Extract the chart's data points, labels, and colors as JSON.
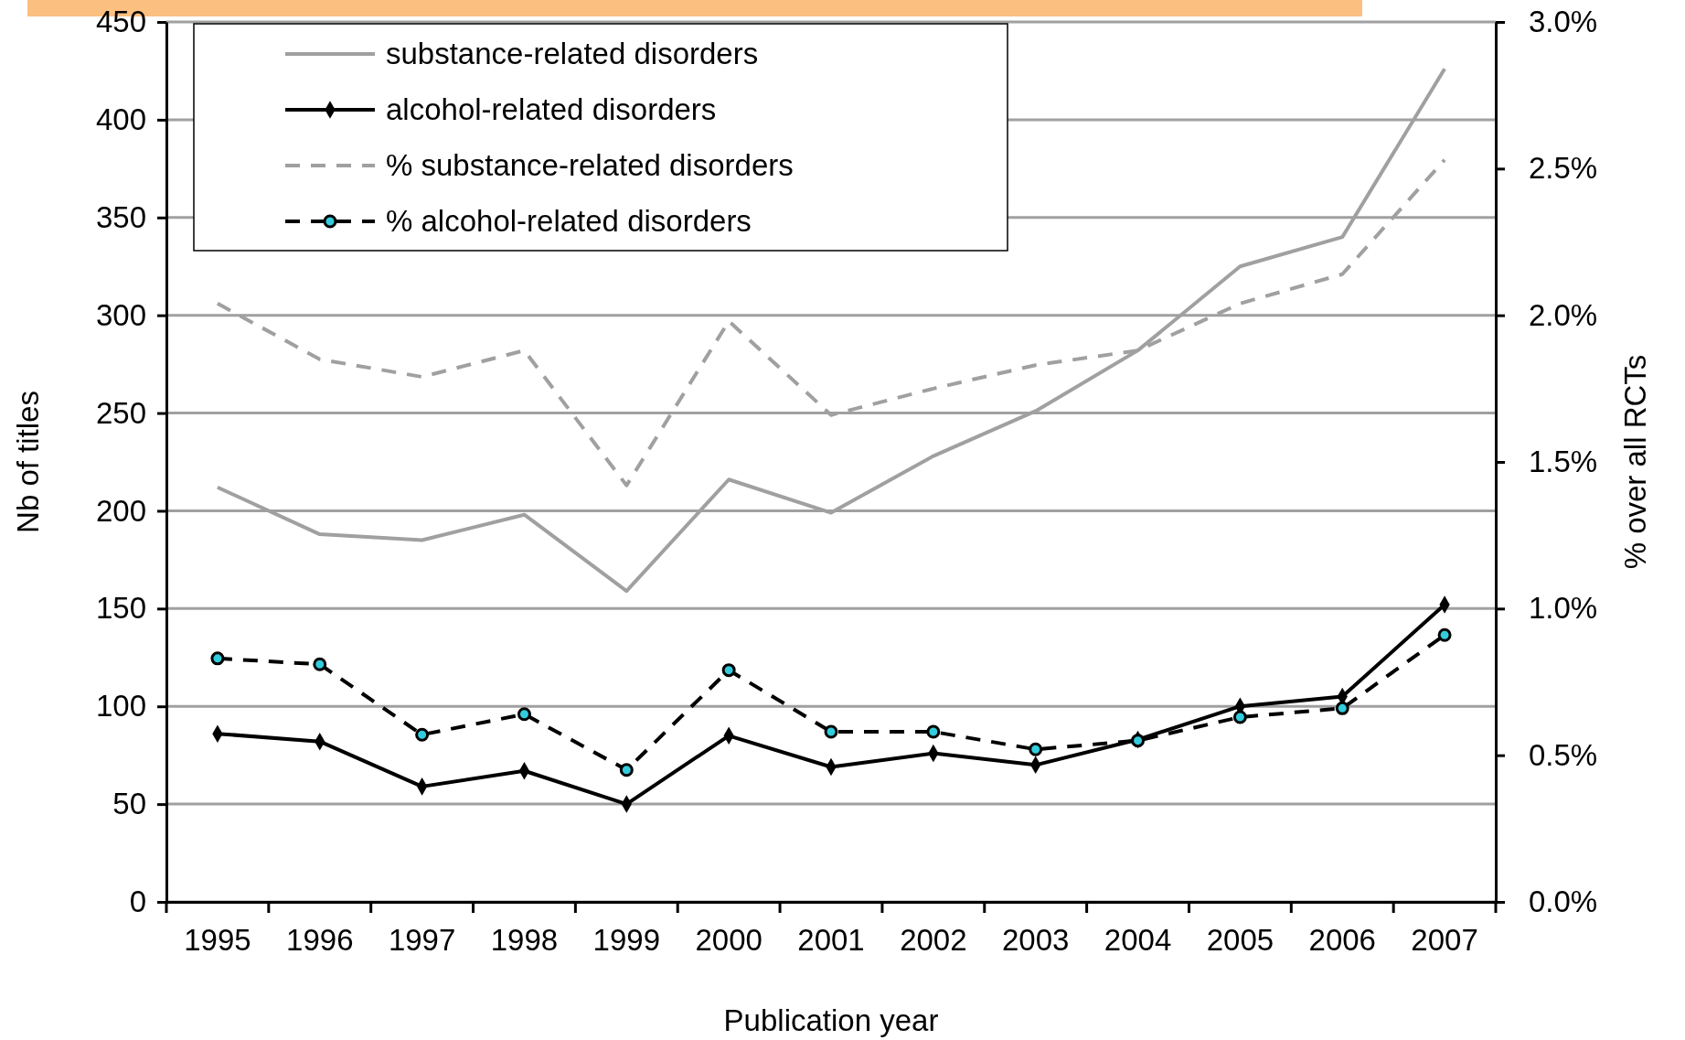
{
  "chart_data": {
    "type": "line",
    "xlabel": "Publication year",
    "ylabel": "Nb of titles",
    "y2label": "% over all RCTs",
    "categories": [
      "1995",
      "1996",
      "1997",
      "1998",
      "1999",
      "2000",
      "2001",
      "2002",
      "2003",
      "2004",
      "2005",
      "2006",
      "2007"
    ],
    "series": [
      {
        "name": "substance-related disorders",
        "color": "#a0a0a0",
        "marker": "none",
        "line_style": "solid",
        "values": [
          212,
          188,
          185,
          198,
          159,
          216,
          199,
          228,
          251,
          282,
          325,
          340,
          426
        ]
      },
      {
        "name": "alcohol-related disorders",
        "color": "#000000",
        "marker": "diamond",
        "line_style": "solid",
        "values": [
          86,
          82,
          59,
          67,
          50,
          85,
          69,
          76,
          70,
          83,
          100,
          105,
          152
        ]
      },
      {
        "name": "% substance-related disorders",
        "color": "#a0a0a0",
        "marker": "none",
        "line_style": "dashed",
        "axis": "y2",
        "values": [
          2.04,
          1.85,
          1.79,
          1.88,
          1.42,
          1.98,
          1.66,
          1.75,
          1.83,
          1.88,
          2.04,
          2.14,
          2.53
        ]
      },
      {
        "name": "% alcohol-related disorders",
        "color": "#000000",
        "marker": "circle",
        "line_style": "dashed",
        "axis": "y2",
        "values": [
          0.83,
          0.81,
          0.57,
          0.64,
          0.45,
          0.79,
          0.58,
          0.58,
          0.52,
          0.55,
          0.63,
          0.66,
          0.91
        ]
      }
    ],
    "ylim": [
      0,
      450
    ],
    "yticks": [
      0,
      50,
      100,
      150,
      200,
      250,
      300,
      350,
      400,
      450
    ],
    "y2lim": [
      0,
      3
    ],
    "y2ticks": [
      {
        "value": 0,
        "label": "0.0%"
      },
      {
        "value": 0.5,
        "label": "0.5%"
      },
      {
        "value": 1,
        "label": "1.0%"
      },
      {
        "value": 1.5,
        "label": "1.5%"
      },
      {
        "value": 2,
        "label": "2.0%"
      },
      {
        "value": 2.5,
        "label": "2.5%"
      },
      {
        "value": 3,
        "label": "3.0%"
      }
    ],
    "grid": "y",
    "legend": "top left"
  }
}
